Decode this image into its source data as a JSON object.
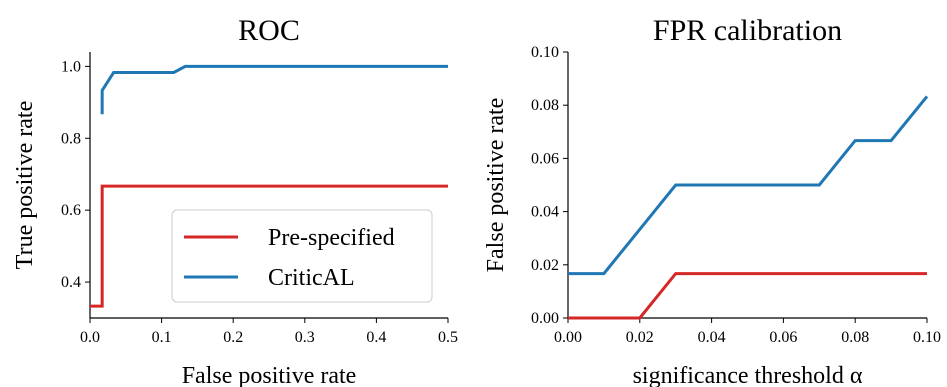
{
  "chart_data": [
    {
      "type": "line",
      "title": "ROC",
      "xlabel": "False positive rate",
      "ylabel": "True positive rate",
      "xlim": [
        0.0,
        0.5
      ],
      "ylim": [
        0.3,
        1.04
      ],
      "xticks": [
        "0.0",
        "0.1",
        "0.2",
        "0.3",
        "0.4",
        "0.5"
      ],
      "yticks": [
        "0.4",
        "0.6",
        "0.8",
        "1.0"
      ],
      "grid": false,
      "legend": "lower right",
      "series": [
        {
          "name": "Pre-specified",
          "color": "#d62728",
          "x": [
            0.0,
            0.017,
            0.017,
            0.5
          ],
          "y": [
            0.333,
            0.333,
            0.667,
            0.667
          ]
        },
        {
          "name": "CriticAL",
          "color": "#1f77b4",
          "x": [
            0.017,
            0.017,
            0.033,
            0.117,
            0.133,
            0.5
          ],
          "y": [
            0.867,
            0.933,
            0.983,
            0.983,
            1.0,
            1.0
          ]
        }
      ]
    },
    {
      "type": "line",
      "title": "FPR calibration",
      "xlabel": "significance threshold α",
      "ylabel": "False positive rate",
      "xlim": [
        0.0,
        0.1
      ],
      "ylim": [
        0.0,
        0.1
      ],
      "xticks": [
        "0.00",
        "0.02",
        "0.04",
        "0.06",
        "0.08",
        "0.10"
      ],
      "yticks": [
        "0.00",
        "0.02",
        "0.04",
        "0.06",
        "0.08",
        "0.10"
      ],
      "grid": false,
      "series": [
        {
          "color": "#1f77b4",
          "x": [
            0.0,
            0.01,
            0.03,
            0.07,
            0.08,
            0.09,
            0.1
          ],
          "y": [
            0.0167,
            0.0167,
            0.05,
            0.05,
            0.0667,
            0.0667,
            0.0833
          ]
        },
        {
          "color": "#d62728",
          "x": [
            0.0,
            0.02,
            0.03,
            0.1
          ],
          "y": [
            0.0,
            0.0,
            0.0167,
            0.0167
          ]
        }
      ]
    }
  ]
}
